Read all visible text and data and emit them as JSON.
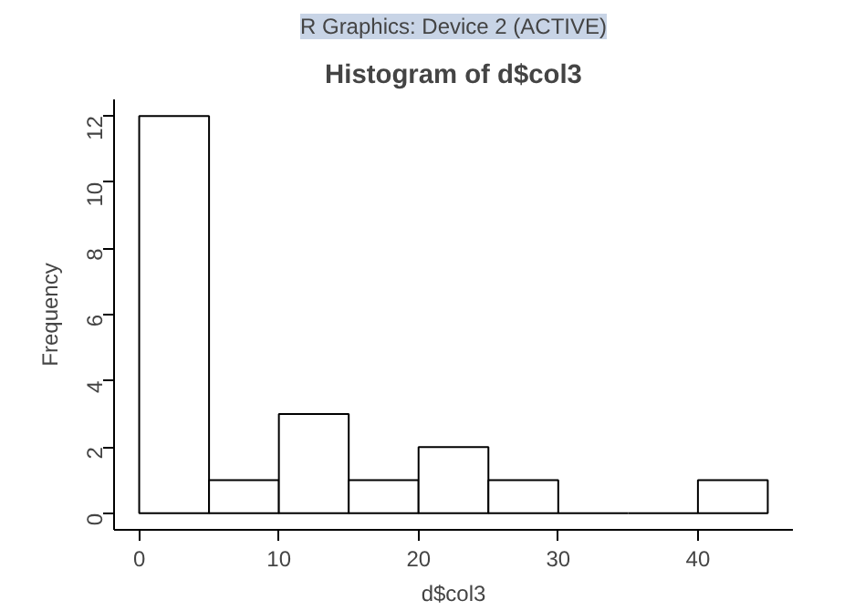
{
  "chart_data": {
    "type": "histogram",
    "title": "Histogram of d$col3",
    "xlabel": "d$col3",
    "ylabel": "Frequency",
    "annotations": [
      "R Graphics: Device 2 (ACTIVE)"
    ],
    "bins": [
      0,
      5,
      10,
      15,
      20,
      25,
      30,
      35,
      40,
      45
    ],
    "values": [
      12,
      1,
      3,
      1,
      2,
      1,
      0,
      0,
      1
    ],
    "xlim": [
      -1.8,
      46.8
    ],
    "ylim": [
      -0.5,
      12.5
    ],
    "xticks": [
      0,
      10,
      20,
      30,
      40
    ],
    "yticks": [
      0,
      2,
      4,
      6,
      8,
      10,
      12
    ],
    "grid": false
  }
}
